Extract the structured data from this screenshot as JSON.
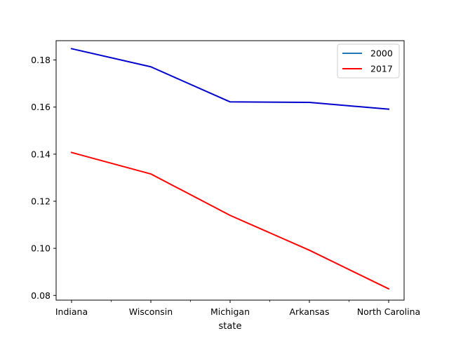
{
  "chart_data": {
    "type": "line",
    "title": "",
    "xlabel": "state",
    "ylabel": "",
    "categories": [
      "Indiana",
      "Wisconsin",
      "Michigan",
      "Arkansas",
      "North Carolina"
    ],
    "minor_ticks_x": true,
    "y_ticks": [
      0.08,
      0.1,
      0.12,
      0.14,
      0.16,
      0.18
    ],
    "y_tick_labels": [
      "0.08",
      "0.10",
      "0.12",
      "0.14",
      "0.16",
      "0.18"
    ],
    "ylim": [
      0.078,
      0.1882
    ],
    "grid": false,
    "legend_position": "top-right",
    "series": [
      {
        "name": "2000",
        "legend_color": "#1f77b4",
        "line_color": "#0000cc",
        "values": [
          0.1848,
          0.1771,
          0.1622,
          0.162,
          0.1591
        ]
      },
      {
        "name": "2017",
        "legend_color": "#ff0000",
        "line_color": "#ff0000",
        "values": [
          0.1407,
          0.1316,
          0.114,
          0.0992,
          0.0828
        ]
      }
    ]
  }
}
